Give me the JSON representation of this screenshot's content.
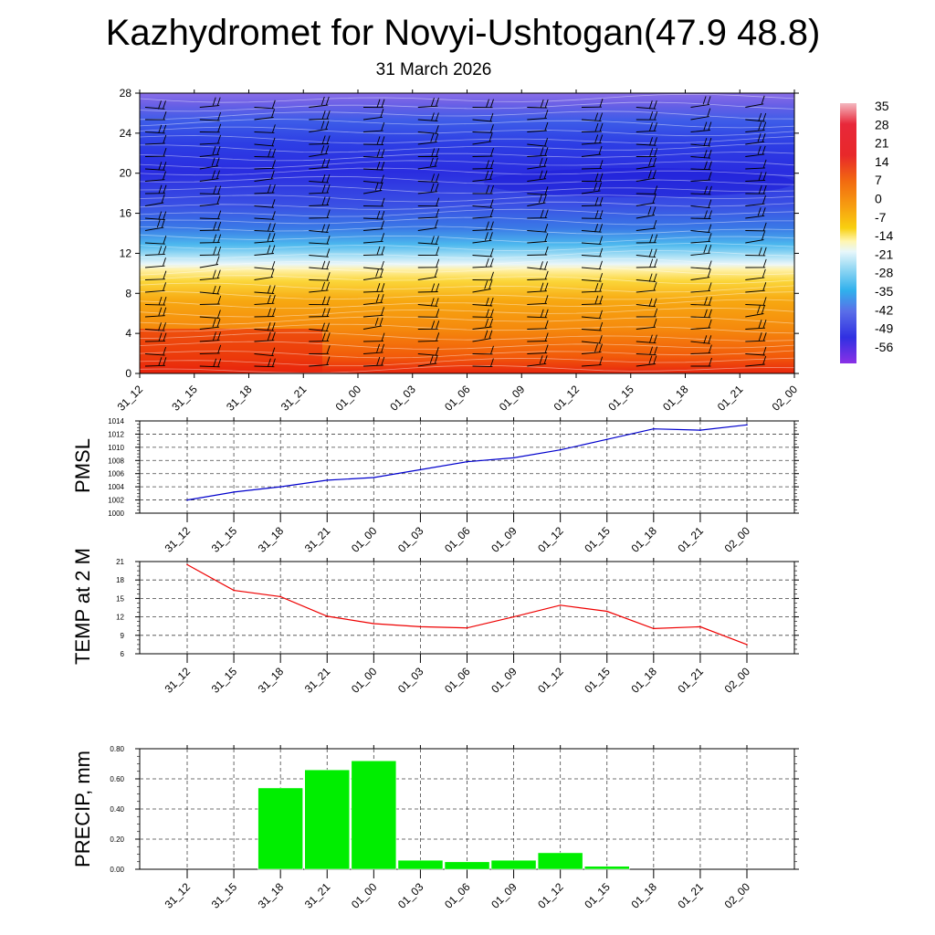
{
  "title": "Kazhydromet for Novyi-Ushtogan(47.9 48.8)",
  "subtitle": "31 March 2026",
  "time_labels": [
    "31_12",
    "31_15",
    "31_18",
    "31_21",
    "01_00",
    "01_03",
    "01_06",
    "01_09",
    "01_12",
    "01_15",
    "01_18",
    "01_21",
    "02_00"
  ],
  "chart_data": [
    {
      "type": "heatmap",
      "name": "temperature cross-section with wind barbs",
      "y_ticks": [
        "0",
        "4",
        "8",
        "12",
        "16",
        "20",
        "24",
        "28"
      ],
      "ylim": [
        0,
        28
      ],
      "colorbar_labels": [
        "35",
        "28",
        "21",
        "14",
        "7",
        "0",
        "-7",
        "-14",
        "-21",
        "-28",
        "-35",
        "-42",
        "-49",
        "-56"
      ],
      "colorbar_range": [
        -63,
        42
      ]
    },
    {
      "type": "line",
      "ylabel": "PMSL",
      "ylim": [
        1000,
        1014
      ],
      "y_ticks": [
        "1000",
        "1002",
        "1004",
        "1006",
        "1008",
        "1010",
        "1012",
        "1014"
      ],
      "values": [
        1002.0,
        1003.2,
        1004.0,
        1005.0,
        1005.4,
        1006.6,
        1007.8,
        1008.4,
        1009.6,
        1011.2,
        1012.8,
        1012.6,
        1013.4
      ],
      "color": "#0000cc"
    },
    {
      "type": "line",
      "ylabel": "TEMP at 2 M",
      "ylim": [
        6,
        21
      ],
      "y_ticks": [
        "6",
        "9",
        "12",
        "15",
        "18",
        "21"
      ],
      "values": [
        20.5,
        16.3,
        15.3,
        12.1,
        10.9,
        10.4,
        10.2,
        12.0,
        13.9,
        12.9,
        10.1,
        10.4,
        7.5
      ],
      "color": "#ee0000"
    },
    {
      "type": "bar",
      "ylabel": "PRECIP, mm",
      "ylim": [
        0,
        0.8
      ],
      "y_ticks": [
        "0.00",
        "0.20",
        "0.40",
        "0.60",
        "0.80"
      ],
      "values": [
        0,
        0,
        0.54,
        0.66,
        0.72,
        0.06,
        0.05,
        0.06,
        0.11,
        0.02,
        0,
        0,
        0
      ],
      "color": "#00ee00"
    }
  ]
}
